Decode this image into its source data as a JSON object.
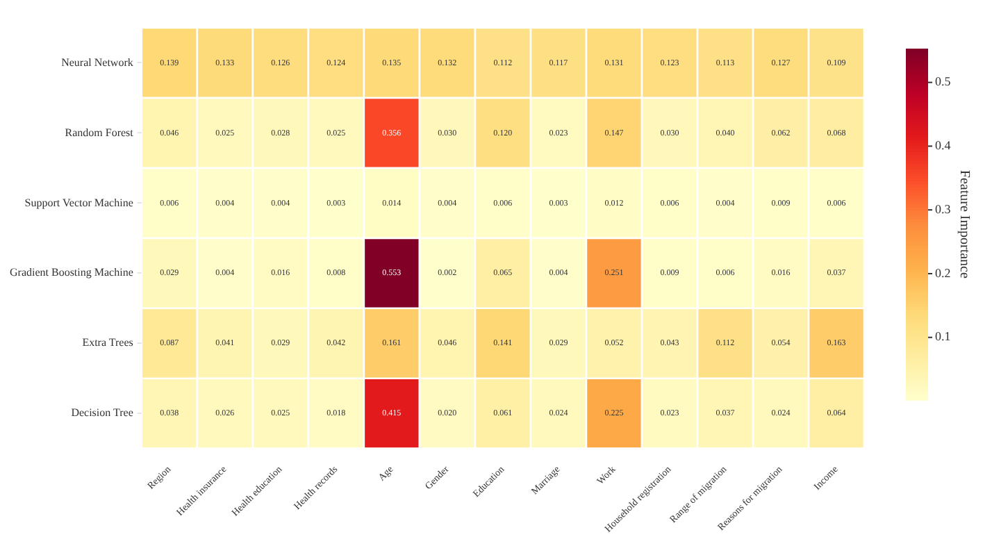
{
  "chart_data": {
    "type": "heatmap",
    "clabel": "Feature Importance",
    "categories": [
      "Region",
      "Health insurance",
      "Health education",
      "Health records",
      "Age",
      "Gender",
      "Education",
      "Marriage",
      "Work",
      "Household registration",
      "Range of migration",
      "Reasons for migration",
      "Income"
    ],
    "y_categories": [
      "Neural Network",
      "Random Forest",
      "Support Vector Machine",
      "Gradient Boosting Machine",
      "Extra Trees",
      "Decision Tree"
    ],
    "cells": [
      [
        0.139,
        0.133,
        0.126,
        0.124,
        0.135,
        0.132,
        0.112,
        0.117,
        0.131,
        0.123,
        0.113,
        0.127,
        0.109
      ],
      [
        0.046,
        0.025,
        0.028,
        0.025,
        0.356,
        0.03,
        0.12,
        0.023,
        0.147,
        0.03,
        0.04,
        0.062,
        0.068
      ],
      [
        0.006,
        0.004,
        0.004,
        0.003,
        0.014,
        0.004,
        0.006,
        0.003,
        0.012,
        0.006,
        0.004,
        0.009,
        0.006
      ],
      [
        0.029,
        0.004,
        0.016,
        0.008,
        0.553,
        0.002,
        0.065,
        0.004,
        0.251,
        0.009,
        0.006,
        0.016,
        0.037
      ],
      [
        0.087,
        0.041,
        0.029,
        0.042,
        0.161,
        0.046,
        0.141,
        0.029,
        0.052,
        0.043,
        0.112,
        0.054,
        0.163
      ],
      [
        0.038,
        0.026,
        0.025,
        0.018,
        0.415,
        0.02,
        0.061,
        0.024,
        0.225,
        0.023,
        0.037,
        0.024,
        0.064
      ]
    ],
    "cell_labels": [
      [
        "0.139",
        "0.133",
        "0.126",
        "0.124",
        "0.135",
        "0.132",
        "0.112",
        "0.117",
        "0.131",
        "0.123",
        "0.113",
        "0.127",
        "0.109"
      ],
      [
        "0.046",
        "0.025",
        "0.028",
        "0.025",
        "0.356",
        "0.030",
        "0.120",
        "0.023",
        "0.147",
        "0.030",
        "0.040",
        "0.062",
        "0.068"
      ],
      [
        "0.006",
        "0.004",
        "0.004",
        "0.003",
        "0.014",
        "0.004",
        "0.006",
        "0.003",
        "0.012",
        "0.006",
        "0.004",
        "0.009",
        "0.006"
      ],
      [
        "0.029",
        "0.004",
        "0.016",
        "0.008",
        "0.553",
        "0.002",
        "0.065",
        "0.004",
        "0.251",
        "0.009",
        "0.006",
        "0.016",
        "0.037"
      ],
      [
        "0.087",
        "0.041",
        "0.029",
        "0.042",
        "0.161",
        "0.046",
        "0.141",
        "0.029",
        "0.052",
        "0.043",
        "0.112",
        "0.054",
        "0.163"
      ],
      [
        "0.038",
        "0.026",
        "0.025",
        "0.018",
        "0.415",
        "0.020",
        "0.061",
        "0.024",
        "0.225",
        "0.023",
        "0.037",
        "0.024",
        "0.064"
      ]
    ],
    "clim": [
      0.002,
      0.553
    ],
    "cticks": [
      0.1,
      0.2,
      0.3,
      0.4,
      0.5
    ]
  }
}
